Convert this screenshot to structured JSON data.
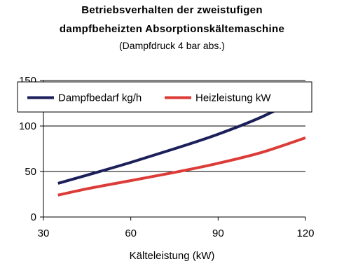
{
  "chart_data": {
    "type": "line",
    "title_line1": "Betriebsverhalten der zweistufigen",
    "title_line2": "dampfbeheizten Absorptionskältemaschine",
    "subtitle": "(Dampfdruck 4 bar abs.)",
    "xlabel": "Kälteleistung (kW)",
    "ylabel": "",
    "xlim": [
      30,
      120
    ],
    "ylim": [
      0,
      150
    ],
    "xticks": [
      30,
      60,
      90,
      120
    ],
    "yticks": [
      0,
      50,
      100,
      150
    ],
    "grid": "horizontal",
    "legend_position": "top",
    "series": [
      {
        "name": "Dampfbedarf kg/h",
        "color": "#1b1f5a",
        "points": [
          [
            35,
            37
          ],
          [
            45,
            46
          ],
          [
            60,
            60
          ],
          [
            75,
            75
          ],
          [
            90,
            91
          ],
          [
            105,
            110
          ],
          [
            120,
            134
          ]
        ]
      },
      {
        "name": "Heizleistung kW",
        "color": "#dc3c37",
        "points": [
          [
            35,
            24
          ],
          [
            45,
            31
          ],
          [
            60,
            40
          ],
          [
            75,
            49
          ],
          [
            90,
            59
          ],
          [
            105,
            71
          ],
          [
            120,
            87
          ]
        ]
      }
    ]
  }
}
